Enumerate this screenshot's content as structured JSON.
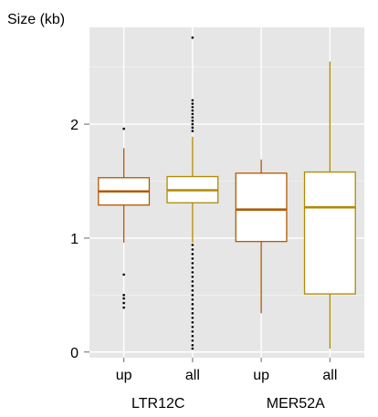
{
  "chart_data": {
    "type": "box",
    "ylabel": "Size (kb)",
    "ylim": [
      -0.05,
      2.85
    ],
    "yticks": [
      0,
      1,
      2
    ],
    "grid": true,
    "legend": "none",
    "categories": [
      "up",
      "all",
      "up",
      "all"
    ],
    "groups": [
      {
        "label": "LTR12C",
        "categories": [
          "up",
          "all"
        ]
      },
      {
        "label": "MER52A",
        "categories": [
          "up",
          "all"
        ]
      }
    ],
    "boxes": [
      {
        "group": "LTR12C",
        "category": "up",
        "whisker_low": 0.96,
        "q1": 1.29,
        "median": 1.41,
        "q3": 1.53,
        "whisker_high": 1.79,
        "outliers": [
          0.39,
          0.43,
          0.47,
          0.5,
          0.68,
          1.96
        ],
        "color": "#b05a00"
      },
      {
        "group": "LTR12C",
        "category": "all",
        "whisker_low": 0.96,
        "q1": 1.31,
        "median": 1.42,
        "q3": 1.54,
        "whisker_high": 1.89,
        "outliers": [
          0.03,
          0.06,
          0.1,
          0.14,
          0.18,
          0.22,
          0.26,
          0.3,
          0.34,
          0.38,
          0.42,
          0.46,
          0.5,
          0.54,
          0.58,
          0.62,
          0.66,
          0.7,
          0.74,
          0.78,
          0.82,
          0.86,
          0.9,
          0.94,
          1.94,
          1.97,
          2.0,
          2.03,
          2.06,
          2.09,
          2.12,
          2.15,
          2.18,
          2.21,
          2.76
        ],
        "color": "#b08a00"
      },
      {
        "group": "MER52A",
        "category": "up",
        "whisker_low": 0.34,
        "q1": 0.97,
        "median": 1.25,
        "q3": 1.57,
        "whisker_high": 1.69,
        "outliers": [],
        "color": "#b05a00"
      },
      {
        "group": "MER52A",
        "category": "all",
        "whisker_low": 0.03,
        "q1": 0.51,
        "median": 1.27,
        "q3": 1.58,
        "whisker_high": 2.55,
        "outliers": [],
        "color": "#b08a00"
      }
    ]
  },
  "colors": {
    "panel": "#e6e6e6",
    "grid": "#ffffff"
  }
}
